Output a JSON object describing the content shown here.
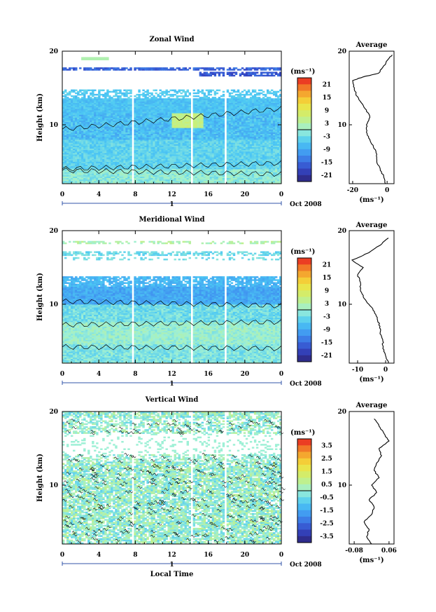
{
  "chart_data": [
    {
      "type": "heatmap",
      "title": "Zonal Wind",
      "ylabel": "Height (km)",
      "xlabel": "",
      "xticks": [
        "0",
        "4",
        "8",
        "12",
        "16",
        "20",
        "0"
      ],
      "yticks": [
        "10",
        "20"
      ],
      "ylim": [
        2,
        20
      ],
      "xlim": [
        0,
        24
      ],
      "date_label": "Oct 2008",
      "day_label": "1",
      "colorbar": {
        "unit": "(ms⁻¹)",
        "ticks": [
          "21",
          "15",
          "9",
          "3",
          "-3",
          "-9",
          "-15",
          "-21"
        ],
        "range": [
          -24,
          24
        ]
      },
      "profile": {
        "title": "Average",
        "xticks": [
          "-20",
          "0"
        ],
        "xunit": "(ms⁻¹)",
        "yticks": [
          "10",
          "20"
        ],
        "xlim": [
          -22,
          4
        ],
        "height": [
          2.0,
          3.0,
          4.0,
          5.0,
          6.0,
          7.0,
          8.0,
          9.0,
          10.0,
          11.0,
          12.0,
          13.0,
          14.0,
          15.0,
          16.0,
          16.5,
          17.0,
          18.0,
          19.0,
          19.5
        ],
        "value": [
          -1,
          -2,
          -4,
          -6,
          -6,
          -8,
          -10,
          -12,
          -12,
          -10,
          -12,
          -15,
          -18,
          -19,
          -20,
          -14,
          -5,
          -2,
          1,
          3
        ]
      }
    },
    {
      "type": "heatmap",
      "title": "Meridional Wind",
      "ylabel": "Height (km)",
      "xlabel": "",
      "xticks": [
        "0",
        "4",
        "8",
        "12",
        "16",
        "20",
        "0"
      ],
      "yticks": [
        "10",
        "20"
      ],
      "ylim": [
        2,
        20
      ],
      "xlim": [
        0,
        24
      ],
      "date_label": "Oct 2008",
      "day_label": "1",
      "colorbar": {
        "unit": "(ms⁻¹)",
        "ticks": [
          "21",
          "15",
          "9",
          "3",
          "-3",
          "-9",
          "-15",
          "-21"
        ],
        "range": [
          -24,
          24
        ]
      },
      "profile": {
        "title": "Average",
        "xticks": [
          "-10",
          "0"
        ],
        "xunit": "(ms⁻¹)",
        "yticks": [
          "10",
          "20"
        ],
        "xlim": [
          -13,
          3
        ],
        "height": [
          2.0,
          3.0,
          4.0,
          5.0,
          6.0,
          7.0,
          8.0,
          9.0,
          10.0,
          11.0,
          12.0,
          13.0,
          14.0,
          15.0,
          16.0,
          17.0,
          18.0,
          19.0
        ],
        "value": [
          1,
          0,
          -1,
          -1,
          -2,
          -2,
          -3,
          -4,
          -6,
          -8,
          -9,
          -9,
          -10,
          -8,
          -12,
          -6,
          -2,
          1
        ]
      }
    },
    {
      "type": "heatmap",
      "title": "Vertical Wind",
      "ylabel": "Height (km)",
      "xlabel": "Local Time",
      "xticks": [
        "0",
        "4",
        "8",
        "12",
        "16",
        "20",
        "0"
      ],
      "yticks": [
        "10",
        "20"
      ],
      "ylim": [
        2,
        20
      ],
      "xlim": [
        0,
        24
      ],
      "date_label": "Oct 2008",
      "day_label": "1",
      "colorbar": {
        "unit": "(ms⁻¹)",
        "ticks": [
          "3.5",
          "2.5",
          "1.5",
          "0.5",
          "-0.5",
          "-1.5",
          "-2.5",
          "-3.5"
        ],
        "range": [
          -4,
          4
        ]
      },
      "profile": {
        "title": "Average",
        "xticks": [
          "-0.08",
          "0.06"
        ],
        "xunit": "(ms⁻¹)",
        "yticks": [
          "10",
          "20"
        ],
        "xlim": [
          -0.1,
          0.08
        ],
        "height": [
          2.0,
          3.0,
          4.0,
          5.0,
          6.0,
          7.0,
          8.0,
          9.0,
          10.0,
          11.0,
          12.0,
          13.0,
          14.0,
          15.0,
          16.0,
          17.0,
          18.0,
          19.0
        ],
        "value": [
          -0.01,
          -0.03,
          -0.02,
          -0.04,
          -0.01,
          0.0,
          -0.02,
          0.01,
          -0.01,
          0.02,
          0.0,
          0.01,
          0.03,
          0.02,
          0.06,
          0.04,
          0.02,
          0.0
        ]
      }
    }
  ]
}
